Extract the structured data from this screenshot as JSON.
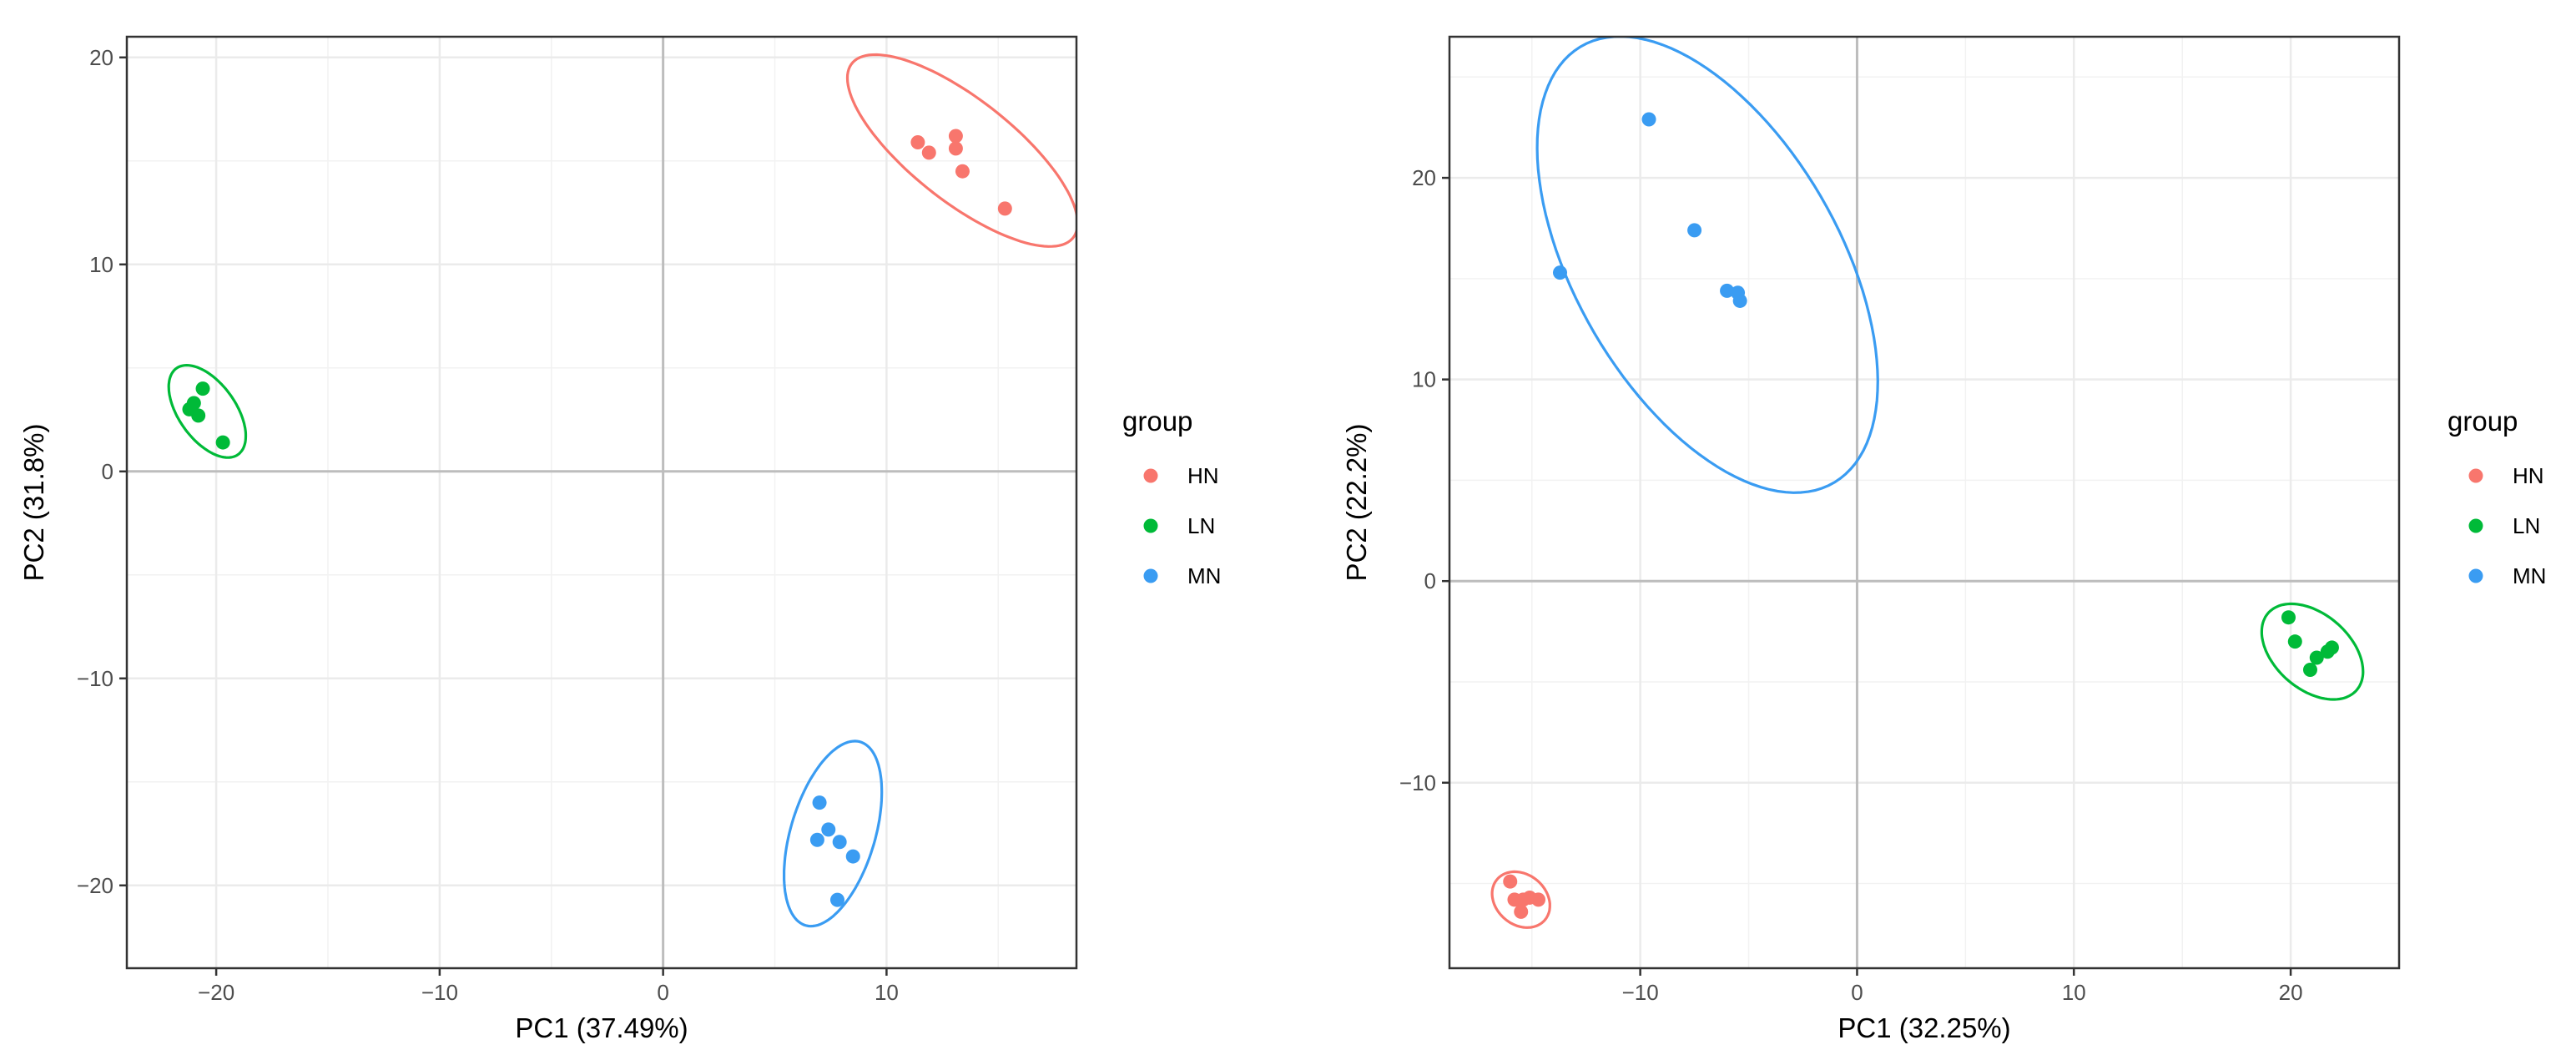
{
  "chart_data": [
    {
      "type": "scatter",
      "title": "",
      "xlabel": "PC1 (37.49%)",
      "ylabel": "PC2 (31.8%)",
      "xlim": [
        -24,
        18.5
      ],
      "ylim": [
        -24,
        21
      ],
      "xticks": [
        -20,
        -10,
        0,
        10
      ],
      "yticks": [
        -20,
        -10,
        0,
        10,
        20
      ],
      "xtick_labels": [
        "−20",
        "−10",
        "0",
        "10"
      ],
      "ytick_labels": [
        "−20",
        "−10",
        "0",
        "10",
        "20"
      ],
      "grid": true,
      "legend": {
        "title": "group",
        "position": "right"
      },
      "series": [
        {
          "name": "HN",
          "color": "#F8766D",
          "points": [
            [
              11.4,
              15.9
            ],
            [
              11.9,
              15.4
            ],
            [
              13.1,
              16.2
            ],
            [
              13.1,
              15.6
            ],
            [
              13.4,
              14.5
            ],
            [
              15.3,
              12.7
            ]
          ],
          "ellipse": {
            "cx": 13.4,
            "cy": 15.5,
            "rx": 6.5,
            "ry": 2.4,
            "angle_deg": -41
          }
        },
        {
          "name": "LN",
          "color": "#00BA38",
          "points": [
            [
              -21.2,
              3.0
            ],
            [
              -21.0,
              3.3
            ],
            [
              -20.8,
              2.7
            ],
            [
              -20.6,
              4.0
            ],
            [
              -19.7,
              1.4
            ]
          ],
          "ellipse": {
            "cx": -20.4,
            "cy": 2.9,
            "rx": 2.5,
            "ry": 1.3,
            "angle_deg": -58
          }
        },
        {
          "name": "MN",
          "color": "#3A9CF2",
          "points": [
            [
              7.0,
              -16.0
            ],
            [
              7.4,
              -17.3
            ],
            [
              6.9,
              -17.8
            ],
            [
              7.9,
              -17.9
            ],
            [
              8.5,
              -18.6
            ],
            [
              7.8,
              -20.7
            ]
          ],
          "ellipse": {
            "cx": 7.6,
            "cy": -17.5,
            "rx": 1.9,
            "ry": 4.6,
            "angle_deg": -15
          }
        }
      ]
    },
    {
      "type": "scatter",
      "title": "",
      "xlabel": "PC1 (32.25%)",
      "ylabel": "PC2 (22.2%)",
      "xlim": [
        -18.8,
        25.0
      ],
      "ylim": [
        -19.2,
        27.0
      ],
      "xticks": [
        -10,
        0,
        10,
        20
      ],
      "yticks": [
        -10,
        0,
        10,
        20
      ],
      "xtick_labels": [
        "−10",
        "0",
        "10",
        "20"
      ],
      "ytick_labels": [
        "−10",
        "0",
        "10",
        "20"
      ],
      "grid": true,
      "legend": {
        "title": "group",
        "position": "right"
      },
      "series": [
        {
          "name": "HN",
          "color": "#F8766D",
          "points": [
            [
              -16.0,
              -14.9
            ],
            [
              -15.8,
              -15.8
            ],
            [
              -15.4,
              -15.8
            ],
            [
              -15.1,
              -15.7
            ],
            [
              -15.5,
              -16.4
            ],
            [
              -14.7,
              -15.8
            ]
          ],
          "ellipse": {
            "cx": -15.5,
            "cy": -15.8,
            "rx": 1.5,
            "ry": 1.2,
            "angle_deg": -50
          }
        },
        {
          "name": "LN",
          "color": "#00BA38",
          "points": [
            [
              19.9,
              -1.8
            ],
            [
              20.2,
              -3.0
            ],
            [
              21.2,
              -3.8
            ],
            [
              21.7,
              -3.5
            ],
            [
              21.9,
              -3.3
            ],
            [
              20.9,
              -4.4
            ]
          ],
          "ellipse": {
            "cx": 21.0,
            "cy": -3.5,
            "rx": 2.8,
            "ry": 1.8,
            "angle_deg": -46
          }
        },
        {
          "name": "MN",
          "color": "#3A9CF2",
          "points": [
            [
              -9.6,
              22.9
            ],
            [
              -7.5,
              17.4
            ],
            [
              -13.7,
              15.3
            ],
            [
              -6.0,
              14.4
            ],
            [
              -5.5,
              14.3
            ],
            [
              -5.4,
              13.9
            ]
          ],
          "ellipse": {
            "cx": -6.9,
            "cy": 15.7,
            "rx": 12.3,
            "ry": 6.2,
            "angle_deg": -63
          }
        }
      ]
    }
  ]
}
